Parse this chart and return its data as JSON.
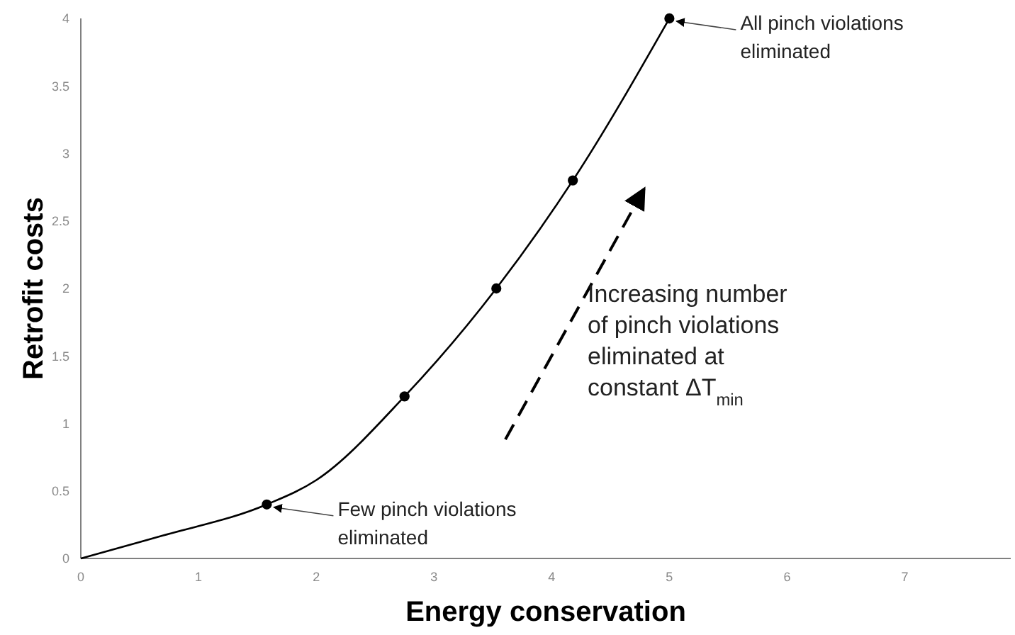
{
  "chart_data": {
    "type": "line",
    "xlabel": "Energy conservation",
    "ylabel": "Retrofit costs",
    "xlim": [
      0,
      7.9
    ],
    "xticks": [
      0,
      1,
      2,
      3,
      4,
      5,
      6,
      7
    ],
    "ylim": [
      0,
      4
    ],
    "yticks": [
      0,
      0.5,
      1,
      1.5,
      2,
      2.5,
      3,
      3.5,
      4
    ],
    "grid": false,
    "series": [
      {
        "type": "line",
        "color": "#000000",
        "marker": "none",
        "x": [
          0,
          0.7,
          1.58,
          2.0,
          2.75,
          3.53,
          4.18,
          5.0
        ],
        "values": [
          0,
          0.17,
          0.4,
          0.58,
          1.2,
          2.0,
          2.8,
          4.0
        ]
      },
      {
        "type": "scatter",
        "color": "#000000",
        "marker": "circle",
        "x": [
          1.58,
          2.75,
          3.53,
          4.18,
          5.0
        ],
        "values": [
          0.4,
          1.2,
          2.0,
          2.8,
          4.0
        ]
      }
    ],
    "annotations": [
      {
        "text": "Few pinch violations\neliminated",
        "x": 1.58,
        "y": 0.4
      },
      {
        "text": "All pinch violations\neliminated",
        "x": 5.0,
        "y": 4.0
      },
      "Increasing number\nof pinch violations\neliminated at\nconstant ΔT$_{min}$"
    ]
  }
}
